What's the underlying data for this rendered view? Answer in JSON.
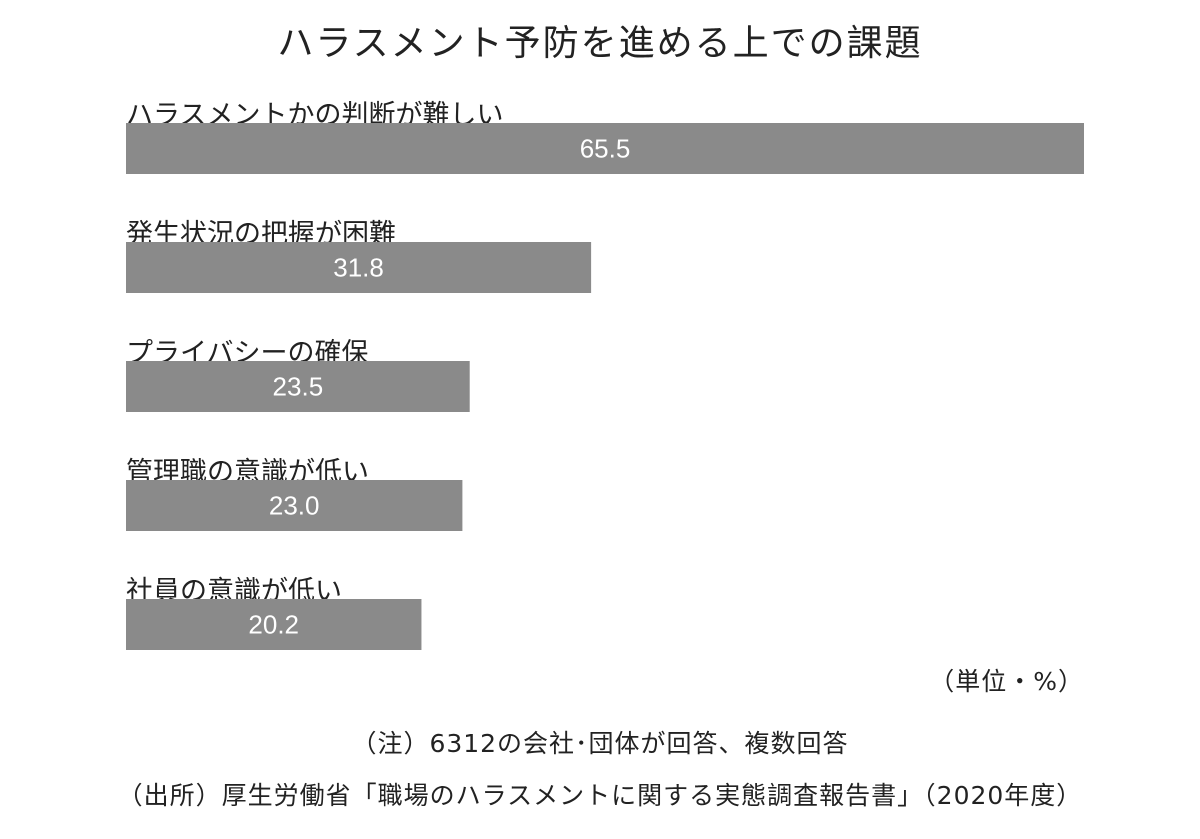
{
  "chart_data": {
    "type": "bar",
    "orientation": "horizontal",
    "title": "ハラスメント予防を進める上での課題",
    "categories": [
      "ハラスメントかの判断が難しい",
      "発生状況の把握が困難",
      "プライバシーの確保",
      "管理職の意識が低い",
      "社員の意識が低い"
    ],
    "values": [
      65.5,
      31.8,
      23.5,
      23.0,
      20.2
    ],
    "data_labels": [
      "65.5",
      "31.8",
      "23.5",
      "23.0",
      "20.2"
    ],
    "xlim": [
      0,
      100
    ],
    "grid": false,
    "bar_color": "#8a8a8a",
    "label_color": "#ffffff",
    "unit_label": "（単位・%）"
  },
  "notes": {
    "note": "（注）6312の会社･団体が回答、複数回答",
    "source": "（出所）厚生労働省「職場のハラスメントに関する実態調査報告書」（2020年度）"
  }
}
